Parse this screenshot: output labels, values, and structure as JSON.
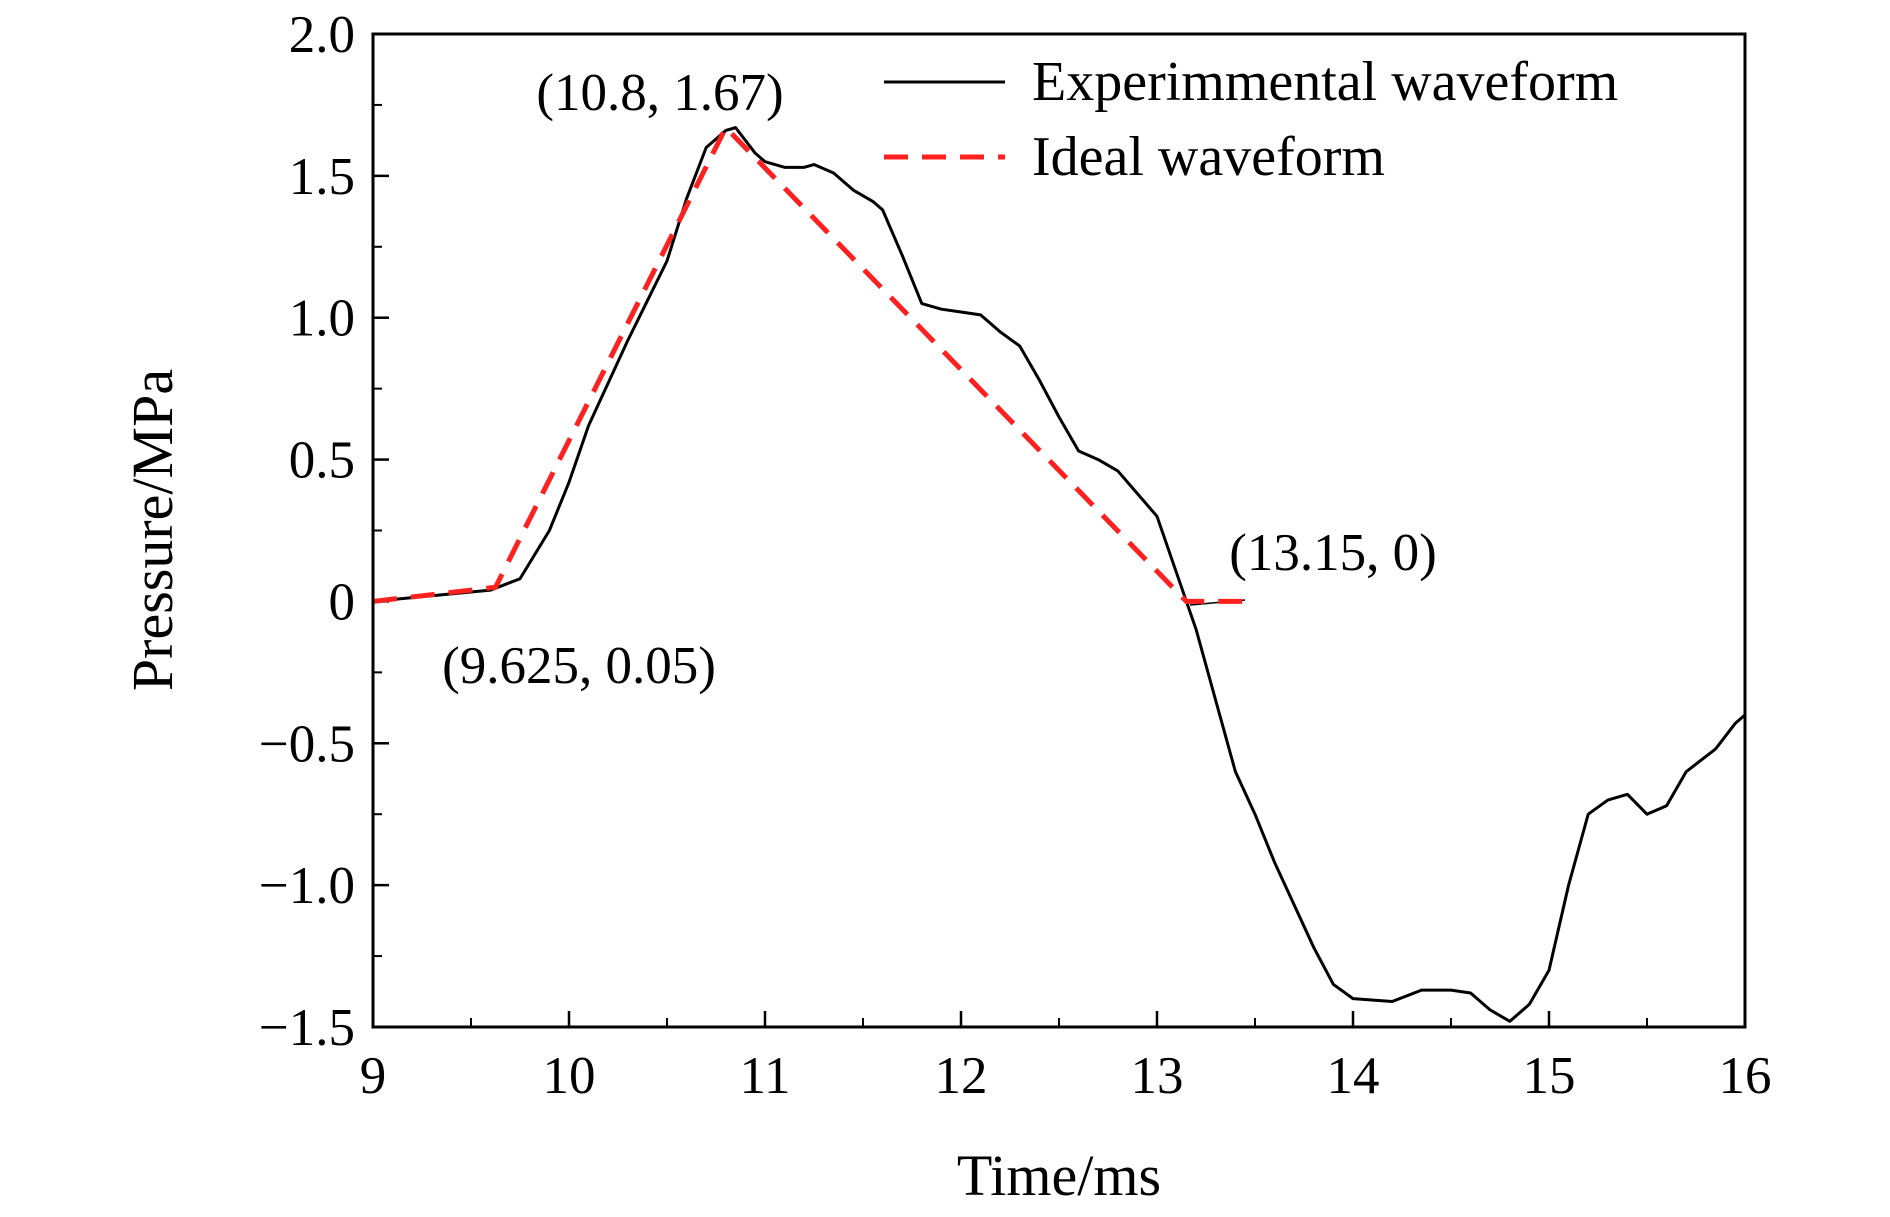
{
  "chart_data": {
    "type": "line",
    "xlabel": "Time/ms",
    "ylabel": "Pressure/MPa",
    "xlim": [
      9,
      16
    ],
    "xticks": [
      9,
      10,
      11,
      12,
      13,
      14,
      15,
      16
    ],
    "ylim": [
      -1.5,
      2.0
    ],
    "yticks": [
      {
        "value": -1.5,
        "label": "−1.5"
      },
      {
        "value": -1.0,
        "label": "−1.0"
      },
      {
        "value": -0.5,
        "label": "−0.5"
      },
      0,
      0.5,
      {
        "value": 1.0,
        "label": "1.0"
      },
      1.5,
      {
        "value": 2.0,
        "label": "2.0"
      }
    ],
    "legend": "upper right",
    "annotations": [
      "(10.8, 1.67)",
      "(13.15, 0)",
      "(9.625, 0.05)"
    ],
    "series": [
      {
        "name": "Experimmental waveform",
        "color": "#000000",
        "dash": false,
        "x": [
          9.0,
          9.3,
          9.6,
          9.75,
          9.9,
          10.0,
          10.1,
          10.3,
          10.5,
          10.6,
          10.7,
          10.8,
          10.85,
          10.95,
          11.0,
          11.1,
          11.2,
          11.25,
          11.35,
          11.45,
          11.55,
          11.6,
          11.7,
          11.8,
          11.9,
          12.0,
          12.1,
          12.2,
          12.3,
          12.4,
          12.5,
          12.6,
          12.7,
          12.8,
          12.9,
          13.0,
          13.1,
          13.2,
          13.3,
          13.4,
          13.5,
          13.6,
          13.7,
          13.8,
          13.9,
          14.0,
          14.2,
          14.35,
          14.5,
          14.6,
          14.7,
          14.8,
          14.9,
          15.0,
          15.1,
          15.2,
          15.3,
          15.4,
          15.5,
          15.6,
          15.7,
          15.85,
          15.95,
          16.0
        ],
        "values": [
          0,
          0.02,
          0.04,
          0.08,
          0.25,
          0.42,
          0.62,
          0.92,
          1.2,
          1.42,
          1.6,
          1.66,
          1.67,
          1.58,
          1.55,
          1.53,
          1.53,
          1.54,
          1.51,
          1.45,
          1.41,
          1.38,
          1.22,
          1.05,
          1.03,
          1.02,
          1.01,
          0.95,
          0.9,
          0.78,
          0.65,
          0.53,
          0.5,
          0.46,
          0.38,
          0.3,
          0.1,
          -0.1,
          -0.35,
          -0.6,
          -0.75,
          -0.92,
          -1.07,
          -1.22,
          -1.35,
          -1.4,
          -1.41,
          -1.37,
          -1.37,
          -1.38,
          -1.44,
          -1.48,
          -1.42,
          -1.3,
          -1.0,
          -0.75,
          -0.7,
          -0.68,
          -0.75,
          -0.72,
          -0.6,
          -0.52,
          -0.43,
          -0.4
        ]
      },
      {
        "name": "Ideal waveform",
        "color": "#ff2020",
        "dash": true,
        "x": [
          9,
          9.625,
          10.8,
          13.15,
          13.5
        ],
        "values": [
          0,
          0.05,
          1.67,
          0,
          0
        ]
      }
    ]
  }
}
